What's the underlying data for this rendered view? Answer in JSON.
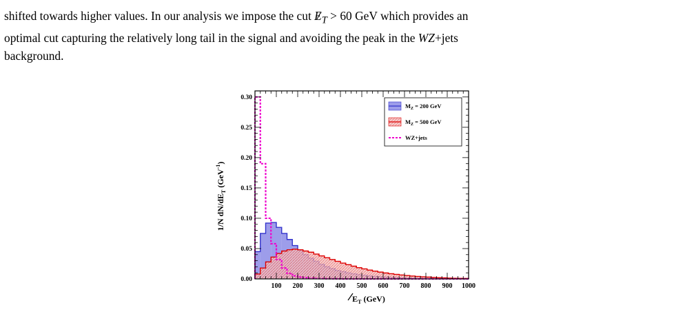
{
  "paragraph": {
    "line1_pre": "shifted towards higher values. In our analysis we impose the cut ",
    "symbol_E": "E",
    "symbol_T": "T",
    "line1_post": " > 60 GeV which provides an",
    "line2_pre": "optimal cut capturing the relatively long tail in the signal and avoiding the peak in the ",
    "wz": "WZ",
    "line2_post": "+jets",
    "line3": "background."
  },
  "chart_data": {
    "type": "histogram",
    "title": "",
    "xlabel": "E̸T (GeV)",
    "xlabel_main": "E",
    "xlabel_sub": "T",
    "xlabel_unit": " (GeV)",
    "ylabel": "1/N dN/dE̸T (GeV⁻¹)",
    "ylabel_pre": "1/N dN/dE",
    "ylabel_sub": "T",
    "ylabel_unit": " (GeV",
    "ylabel_exp": "-1",
    "ylabel_close": ")",
    "xlim": [
      0,
      1000
    ],
    "ylim": [
      0,
      0.31
    ],
    "bin_width": 25,
    "x_ticks": [
      100,
      200,
      300,
      400,
      500,
      600,
      700,
      800,
      900,
      1000
    ],
    "y_ticks": [
      0.0,
      0.05,
      0.1,
      0.15,
      0.2,
      0.25,
      0.3
    ],
    "y_tick_labels": [
      "0.00",
      "0.05",
      "0.10",
      "0.15",
      "0.20",
      "0.25",
      "0.30"
    ],
    "legend_position": "top-right",
    "series": [
      {
        "name": "M_Z = 200 GeV",
        "label_main": "M",
        "label_sub": "Z",
        "label_rest": " = 200 GeV",
        "color": "#3333cc",
        "fill": "#8888e0",
        "values": [
          0.045,
          0.075,
          0.092,
          0.093,
          0.085,
          0.075,
          0.065,
          0.055,
          0.047,
          0.04,
          0.034,
          0.029,
          0.024,
          0.02,
          0.017,
          0.014,
          0.012,
          0.01,
          0.0085,
          0.007,
          0.006,
          0.005,
          0.0042,
          0.0035,
          0.003,
          0.0025,
          0.002,
          0.0017,
          0.0014,
          0.0012,
          0.001,
          0.0008,
          0.0007,
          0.0006,
          0.0005,
          0.0004,
          0.0003,
          0.00025,
          0.0002,
          0.0001
        ]
      },
      {
        "name": "M_Z = 500 GeV",
        "label_main": "M",
        "label_sub": "Z",
        "label_rest": " = 500 GeV",
        "color": "#dd0000",
        "fill": "#f2a0a0",
        "values": [
          0.008,
          0.018,
          0.028,
          0.036,
          0.042,
          0.046,
          0.048,
          0.049,
          0.048,
          0.046,
          0.044,
          0.041,
          0.038,
          0.035,
          0.032,
          0.029,
          0.026,
          0.0235,
          0.021,
          0.0185,
          0.0165,
          0.0145,
          0.0128,
          0.0112,
          0.0098,
          0.0086,
          0.0075,
          0.0065,
          0.0056,
          0.0048,
          0.0041,
          0.0035,
          0.003,
          0.0025,
          0.0021,
          0.0017,
          0.0014,
          0.0011,
          0.0009,
          0.0007
        ]
      },
      {
        "name": "WZ+jets",
        "color": "#ee00cc",
        "values": [
          0.3,
          0.19,
          0.1,
          0.058,
          0.032,
          0.018,
          0.009,
          0.005,
          0.003,
          0.002,
          0.0012,
          0.0008,
          0.0005,
          0.0003,
          0.0002,
          0.0001,
          0,
          0,
          0,
          0,
          0,
          0,
          0,
          0,
          0,
          0,
          0,
          0,
          0,
          0,
          0,
          0,
          0,
          0,
          0,
          0,
          0,
          0,
          0,
          0
        ]
      }
    ]
  }
}
